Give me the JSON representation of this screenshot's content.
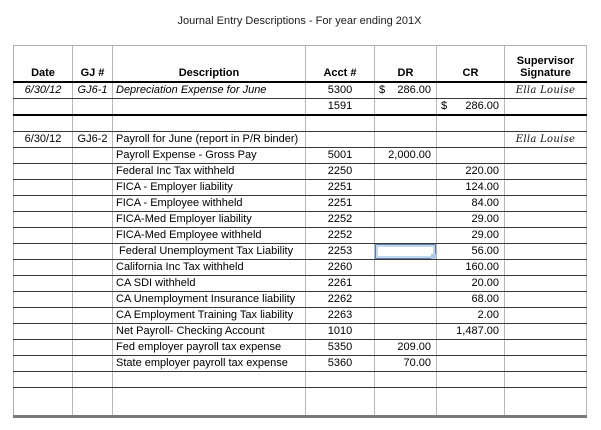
{
  "title": "Journal Entry Descriptions - For year ending 201X",
  "signature_name": "Ella Louise",
  "selection_color": "#5d7ea6",
  "columns": [
    {
      "key": "date",
      "label": "Date"
    },
    {
      "key": "gj",
      "label": "GJ #"
    },
    {
      "key": "desc",
      "label": "Description"
    },
    {
      "key": "acct",
      "label": "Acct #"
    },
    {
      "key": "dr",
      "label": "DR"
    },
    {
      "key": "cr",
      "label": "CR"
    },
    {
      "key": "sig",
      "label": "Supervisor Signature"
    }
  ],
  "rows": [
    {
      "date": "6/30/12",
      "gj": "GJ6-1",
      "desc": "Depreciation Expense for June",
      "acct": "5300",
      "dr_dollar": "$",
      "dr": "286.00",
      "sig": "Ella Louise",
      "italic": true
    },
    {
      "acct": "1591",
      "cr_dollar": "$",
      "cr": "286.00",
      "entry_end": true
    },
    {},
    {
      "date": "6/30/12",
      "gj": "GJ6-2",
      "desc": "Payroll for June (report in P/R binder)",
      "sig": "Ella Louise"
    },
    {
      "desc": "Payroll Expense - Gross Pay",
      "acct": "5001",
      "dr": "2,000.00"
    },
    {
      "desc": "Federal Inc Tax withheld",
      "acct": "2250",
      "cr": "220.00"
    },
    {
      "desc": "FICA - Employer liability",
      "acct": "2251",
      "cr": "124.00"
    },
    {
      "desc": "FICA - Employee withheld",
      "acct": "2251",
      "cr": "84.00"
    },
    {
      "desc": "FICA-Med Employer liability",
      "acct": "2252",
      "cr": "29.00"
    },
    {
      "desc": "FICA-Med Employee withheld",
      "acct": "2252",
      "cr": "29.00"
    },
    {
      "desc": " Federal Unemployment Tax Liability",
      "acct": "2253",
      "cr": "56.00",
      "dr_selected": true
    },
    {
      "desc": "California Inc Tax withheld",
      "acct": "2260",
      "cr": "160.00"
    },
    {
      "desc": "CA SDI withheld",
      "acct": "2261",
      "cr": "20.00"
    },
    {
      "desc": "CA Unemployment Insurance liability",
      "acct": "2262",
      "cr": "68.00"
    },
    {
      "desc": "CA Employment Training Tax liability",
      "acct": "2263",
      "cr": "2.00"
    },
    {
      "desc": "Net Payroll- Checking Account",
      "acct": "1010",
      "cr": "1,487.00"
    },
    {
      "desc": "Fed employer payroll tax expense",
      "acct": "5350",
      "dr": "209.00"
    },
    {
      "desc": "State employer payroll tax expense",
      "acct": "5360",
      "dr": "70.00"
    },
    {},
    {
      "tall": true
    }
  ]
}
